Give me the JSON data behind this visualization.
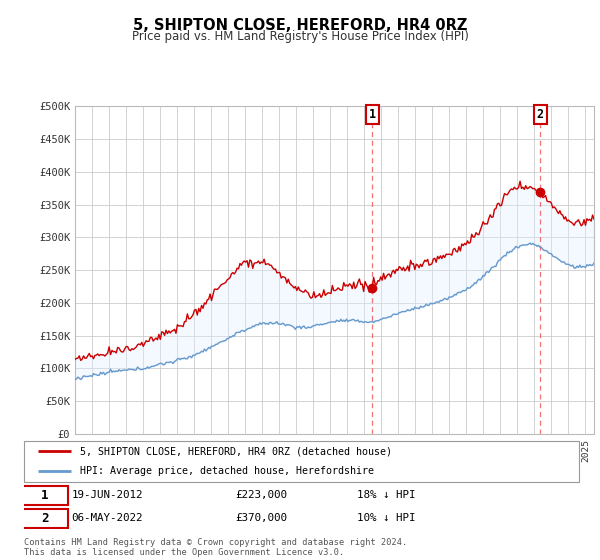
{
  "title": "5, SHIPTON CLOSE, HEREFORD, HR4 0RZ",
  "subtitle": "Price paid vs. HM Land Registry's House Price Index (HPI)",
  "ylabel_ticks": [
    "£0",
    "£50K",
    "£100K",
    "£150K",
    "£200K",
    "£250K",
    "£300K",
    "£350K",
    "£400K",
    "£450K",
    "£500K"
  ],
  "ylim": [
    0,
    500000
  ],
  "xlim_start": 1995.0,
  "xlim_end": 2025.5,
  "transaction1": {
    "date_num": 2012.47,
    "price": 223000,
    "label": "1",
    "date_str": "19-JUN-2012",
    "pct": "18% ↓ HPI"
  },
  "transaction2": {
    "date_num": 2022.35,
    "price": 370000,
    "label": "2",
    "date_str": "06-MAY-2022",
    "pct": "10% ↓ HPI"
  },
  "legend_red_label": "5, SHIPTON CLOSE, HEREFORD, HR4 0RZ (detached house)",
  "legend_blue_label": "HPI: Average price, detached house, Herefordshire",
  "footer1": "Contains HM Land Registry data © Crown copyright and database right 2024.",
  "footer2": "This data is licensed under the Open Government Licence v3.0.",
  "red_color": "#cc0000",
  "blue_color": "#6699cc",
  "fill_color": "#ddeeff",
  "background_color": "#ffffff",
  "grid_color": "#cccccc",
  "vline_color": "#ee6666"
}
